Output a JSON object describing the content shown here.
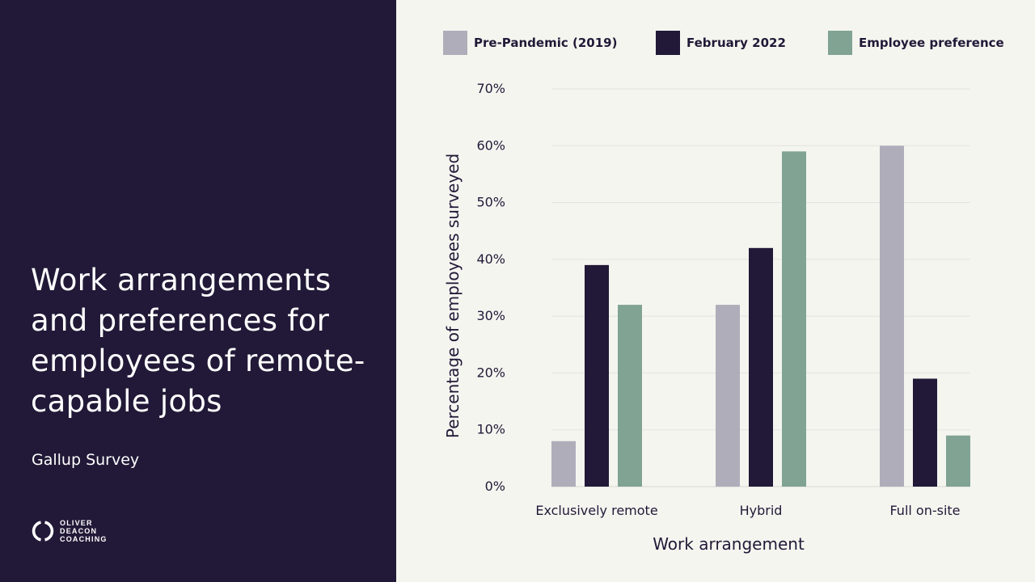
{
  "title": "Work arrangements and preferences for employees of remote-capable jobs",
  "subtitle": "Gallup Survey",
  "logo": {
    "line1": "OLIVER",
    "line2": "DEACON",
    "line3": "COACHING"
  },
  "colors": {
    "left_panel": "#211937",
    "background": "#f5f5f0",
    "pre": "#b0adba",
    "feb": "#211937",
    "pref": "#80a393",
    "grid": "#e2e2dc"
  },
  "chart_data": {
    "type": "bar",
    "categories": [
      "Exclusively remote",
      "Hybrid",
      "Full on-site"
    ],
    "series": [
      {
        "name": "Pre-Pandemic (2019)",
        "color": "#b0adba",
        "values": [
          8,
          32,
          60
        ]
      },
      {
        "name": "February 2022",
        "color": "#211937",
        "values": [
          39,
          42,
          19
        ]
      },
      {
        "name": "Employee preference",
        "color": "#80a393",
        "values": [
          32,
          59,
          9
        ]
      }
    ],
    "yticks": [
      "0%",
      "10%",
      "20%",
      "30%",
      "40%",
      "50%",
      "60%",
      "70%"
    ],
    "xlabel": "Work arrangement",
    "ylabel": "Percentage of employees surveyed",
    "ylim": [
      0,
      70
    ],
    "grid": true,
    "legend_position": "top"
  }
}
